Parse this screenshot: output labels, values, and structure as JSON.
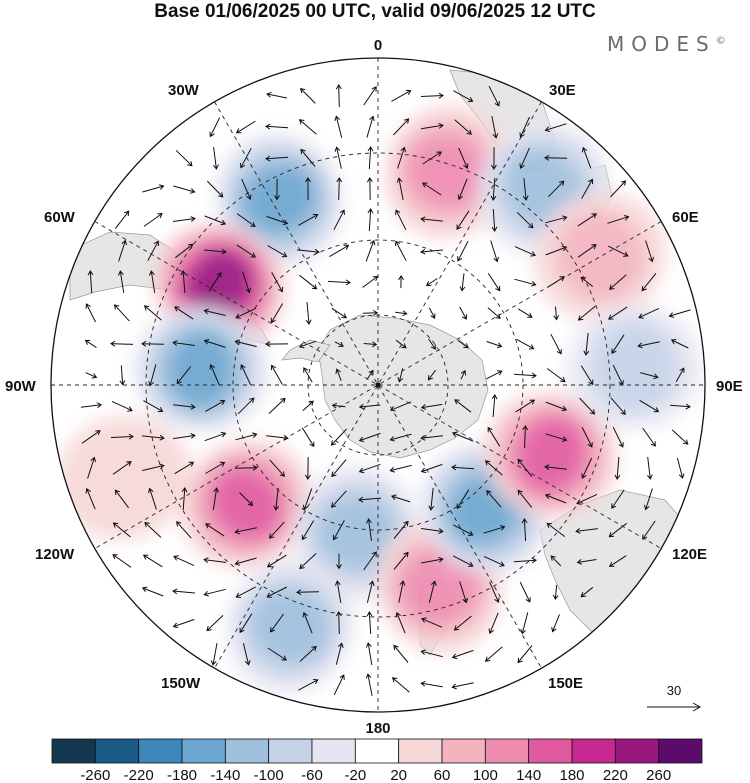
{
  "title": "Base 01/06/2025 00 UTC, valid 09/06/2025 12 UTC",
  "brand": "MODES",
  "brand_mark": "©",
  "projection": "south-polar-stereographic",
  "longitude_labels": {
    "top": "0",
    "bottom": "180",
    "left": "90W",
    "right": "90E",
    "upper_left_1": "30W",
    "upper_left_2": "60W",
    "upper_right_1": "30E",
    "upper_right_2": "60E",
    "lower_left_1": "120W",
    "lower_left_2": "150W",
    "lower_right_1": "120E",
    "lower_right_2": "150E"
  },
  "vector_scale_label": "30",
  "colorbar": {
    "colors": [
      "#12374f",
      "#1a5b87",
      "#3c88bd",
      "#6aa6cf",
      "#9fbfdd",
      "#c5d2e8",
      "#e6e6f2",
      "#ffffff",
      "#f7d8d8",
      "#f3b4c0",
      "#ee8cb0",
      "#e15aa0",
      "#c7288f",
      "#981880",
      "#5c0a6c"
    ],
    "labels": [
      "-260",
      "-220",
      "-180",
      "-140",
      "-100",
      "-60",
      "-20",
      "20",
      "60",
      "100",
      "140",
      "180",
      "220",
      "260"
    ]
  },
  "anomaly_centers": [
    {
      "lon": 18,
      "lat": -42,
      "value": 130
    },
    {
      "lon": -28,
      "lat": -45,
      "value": -150
    },
    {
      "lon": -58,
      "lat": -50,
      "value": 230
    },
    {
      "lon": -85,
      "lat": -52,
      "value": -140
    },
    {
      "lon": -132,
      "lat": -52,
      "value": 160
    },
    {
      "lon": -172,
      "lat": -58,
      "value": -100
    },
    {
      "lon": 163,
      "lat": -45,
      "value": 130
    },
    {
      "lon": -160,
      "lat": -35,
      "value": -100
    },
    {
      "lon": 139,
      "lat": -55,
      "value": -140
    },
    {
      "lon": 112,
      "lat": -50,
      "value": 140
    },
    {
      "lon": 40,
      "lat": -35,
      "value": -130
    },
    {
      "lon": 60,
      "lat": -35,
      "value": 60
    },
    {
      "lon": 86,
      "lat": -35,
      "value": -60
    },
    {
      "lon": -110,
      "lat": -32,
      "value": 50
    }
  ]
}
